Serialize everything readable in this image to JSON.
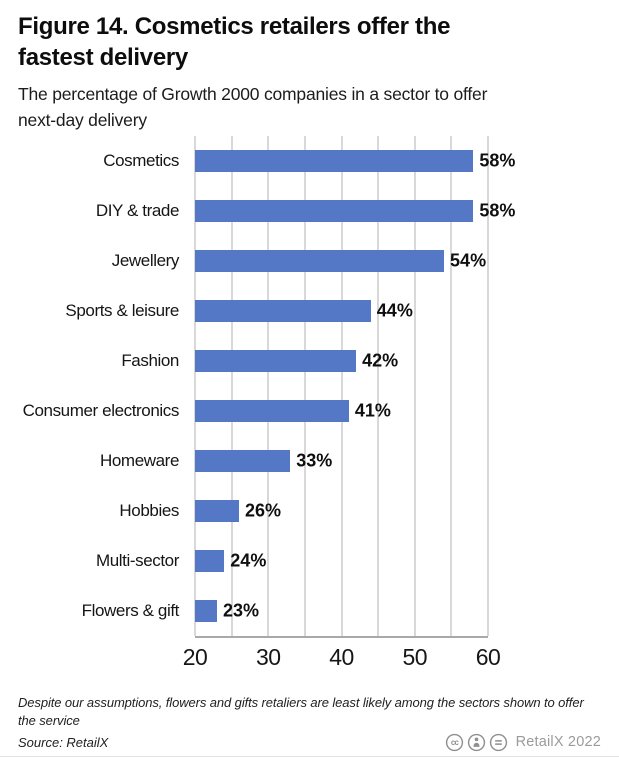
{
  "figure": {
    "title_lines": [
      "Figure 14. Cosmetics retailers offer the",
      "fastest delivery"
    ],
    "subtitle_lines": [
      "The percentage of Growth 2000 companies in a sector to offer",
      "next-day delivery"
    ]
  },
  "chart_data": {
    "type": "bar",
    "orientation": "horizontal",
    "title": "Figure 14. Cosmetics retailers offer the fastest delivery",
    "subtitle": "The percentage of Growth 2000 companies in a sector to offer next-day delivery",
    "categories": [
      "Cosmetics",
      "DIY & trade",
      "Jewellery",
      "Sports & leisure",
      "Fashion",
      "Consumer electronics",
      "Homeware",
      "Hobbies",
      "Multi-sector",
      "Flowers & gift"
    ],
    "values": [
      58,
      58,
      54,
      44,
      42,
      41,
      33,
      26,
      24,
      23
    ],
    "value_labels": [
      "58%",
      "58%",
      "54%",
      "44%",
      "42%",
      "41%",
      "33%",
      "26%",
      "24%",
      "23%"
    ],
    "xlabel": "",
    "ylabel": "",
    "xlim": [
      20,
      60
    ],
    "x_ticks": [
      20,
      30,
      40,
      50,
      60
    ],
    "x_minor_step": 5,
    "grid": true,
    "legend": "none",
    "bar_color": "#5478c5",
    "grid_color": "#b2b2b2",
    "axis_color": "#a9a9a9"
  },
  "footer": {
    "note": "Despite our assumptions, flowers and gifts retaliers are least likely among the sectors shown to offer the service",
    "source": "Source: RetailX",
    "license_icons": [
      "cc-icon",
      "attribution-icon",
      "no-derivatives-icon"
    ],
    "credit": "RetailX 2022"
  }
}
